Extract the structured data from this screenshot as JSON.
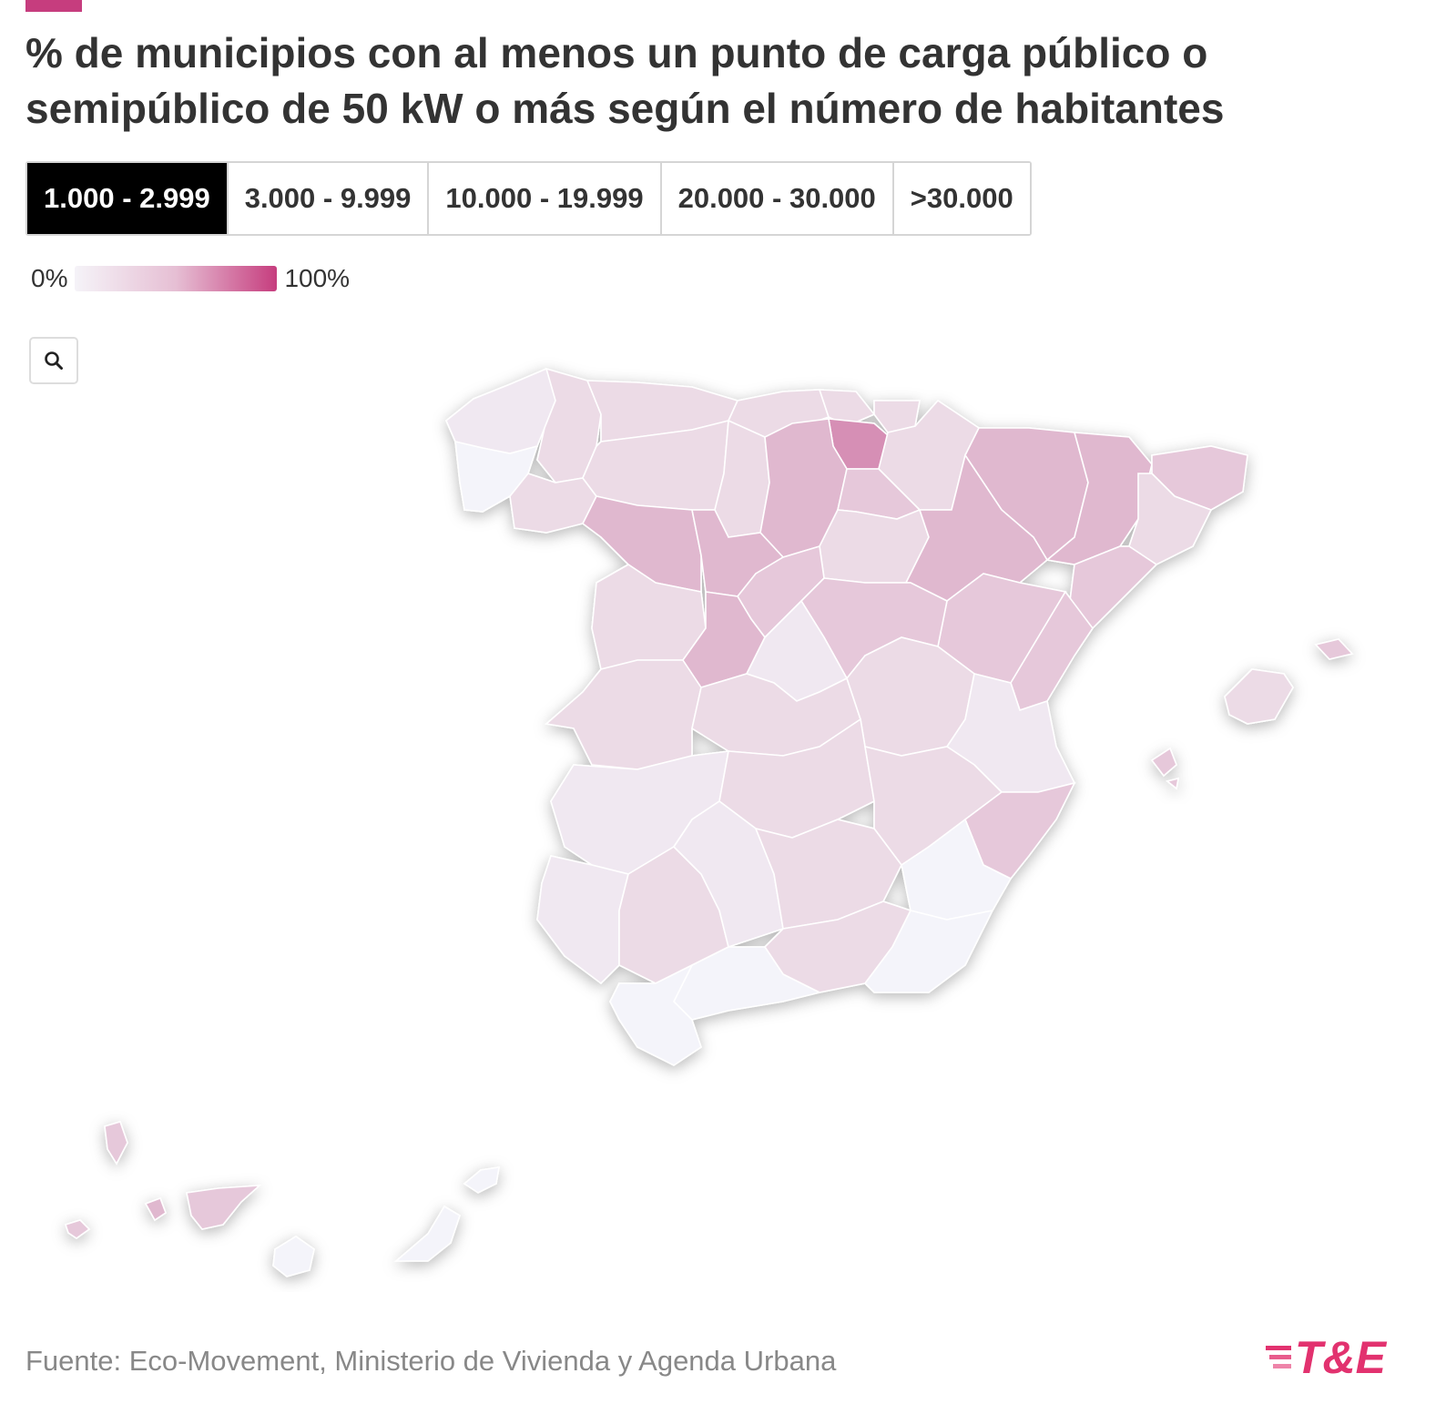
{
  "header": {
    "title": "% de municipios con al menos un punto de carga público o semipúblico de 50 kW o más según el número de habitantes",
    "accent_color": "#c63d7e"
  },
  "tabs": [
    {
      "label": "1.000 - 2.999",
      "active": true
    },
    {
      "label": "3.000 - 9.999",
      "active": false
    },
    {
      "label": "10.000 - 19.999",
      "active": false
    },
    {
      "label": "20.000 - 30.000",
      "active": false
    },
    {
      "label": ">30.000",
      "active": false
    }
  ],
  "legend": {
    "min_label": "0%",
    "max_label": "100%",
    "color_low": "#f5f3f8",
    "color_high": "#c63d7e"
  },
  "zoom": {
    "icon": "search-icon"
  },
  "map": {
    "fill_colors": {
      "lightest": "#f4f4fa",
      "light": "#f0e8f1",
      "light_mid": "#ecdbe6",
      "mid": "#e6c8da",
      "strong": "#e0b8cf",
      "strongest": "#d68fb5"
    }
  },
  "footer": {
    "source": "Fuente: Eco-Movement, Ministerio de Vivienda y Agenda Urbana",
    "logo_text": "T&E",
    "logo_color": "#e2326f"
  }
}
